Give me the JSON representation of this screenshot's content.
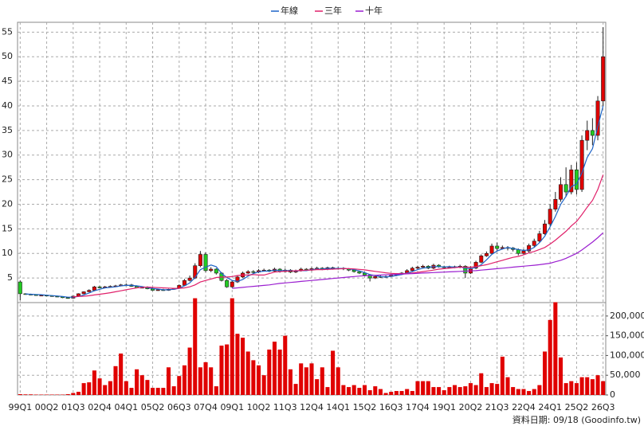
{
  "chart_data": {
    "type": "candlestick",
    "categories": [
      "99Q1",
      null,
      null,
      null,
      null,
      "00Q2",
      null,
      null,
      null,
      null,
      "01Q3",
      null,
      null,
      null,
      null,
      "02Q4",
      null,
      null,
      null,
      null,
      "04Q1",
      null,
      null,
      null,
      null,
      "05Q2",
      null,
      null,
      null,
      null,
      "06Q3",
      null,
      null,
      null,
      null,
      "07Q4",
      null,
      null,
      null,
      null,
      "09Q1",
      null,
      null,
      null,
      null,
      "10Q2",
      null,
      null,
      null,
      null,
      "11Q3",
      null,
      null,
      null,
      null,
      "12Q4",
      null,
      null,
      null,
      null,
      "14Q1",
      null,
      null,
      null,
      null,
      "15Q2",
      null,
      null,
      null,
      null,
      "16Q3",
      null,
      null,
      null,
      null,
      "17Q4",
      null,
      null,
      null,
      null,
      "19Q1",
      null,
      null,
      null,
      null,
      "20Q2",
      null,
      null,
      null,
      null,
      "21Q3",
      null,
      null,
      null,
      null,
      "22Q4",
      null,
      null,
      null,
      null,
      "24Q1",
      null,
      null,
      null,
      null,
      "25Q2",
      null,
      null,
      null,
      null,
      "26Q3"
    ],
    "open": [
      4.2,
      1.8,
      1.7,
      1.6,
      1.5,
      1.5,
      1.4,
      1.3,
      1.2,
      1.0,
      0.9,
      1.3,
      1.8,
      2.2,
      2.5,
      3.2,
      3.0,
      3.2,
      3.3,
      3.4,
      3.6,
      3.6,
      3.3,
      3.0,
      3.1,
      2.8,
      2.5,
      2.6,
      2.5,
      2.7,
      2.9,
      3.5,
      4.5,
      5.0,
      7.5,
      9.8,
      6.5,
      6.8,
      6.0,
      4.5,
      3.2,
      4.2,
      5.2,
      6.0,
      6.3,
      6.2,
      6.5,
      6.6,
      6.4,
      6.8,
      6.3,
      6.6,
      6.2,
      6.5,
      6.8,
      6.6,
      6.9,
      7.0,
      6.8,
      7.1,
      6.9,
      7.0,
      6.9,
      6.6,
      6.3,
      6.0,
      5.6,
      5.0,
      5.3,
      5.2,
      5.3,
      5.6,
      5.8,
      6.0,
      6.5,
      7.0,
      7.2,
      7.4,
      7.0,
      7.6,
      7.3,
      7.1,
      7.3,
      7.2,
      7.4,
      6.0,
      7.0,
      8.2,
      9.5,
      10.0,
      11.5,
      11.0,
      11.2,
      11.1,
      10.8,
      10.0,
      10.5,
      11.6,
      12.5,
      14.0,
      16.0,
      19.0,
      21.0,
      24.0,
      22.5,
      27.0,
      23.0,
      33.0,
      35.0,
      34.0,
      41.0
    ],
    "high": [
      4.5,
      1.9,
      1.8,
      1.7,
      1.6,
      1.6,
      1.5,
      1.4,
      1.3,
      1.1,
      1.4,
      1.9,
      2.3,
      2.7,
      3.4,
      3.4,
      3.4,
      3.5,
      3.6,
      3.8,
      3.9,
      3.8,
      3.5,
      3.3,
      3.3,
      3.0,
      2.8,
      2.8,
      2.8,
      3.0,
      3.7,
      4.8,
      5.5,
      8.0,
      10.5,
      10.2,
      7.2,
      7.0,
      6.2,
      4.8,
      4.5,
      5.5,
      6.3,
      6.6,
      6.6,
      6.8,
      6.9,
      6.8,
      7.1,
      7.0,
      6.9,
      6.8,
      6.7,
      7.1,
      7.0,
      7.2,
      7.3,
      7.2,
      7.3,
      7.3,
      7.2,
      7.2,
      7.0,
      6.8,
      6.5,
      6.2,
      5.8,
      5.6,
      5.5,
      5.5,
      5.8,
      6.0,
      6.2,
      6.8,
      7.3,
      7.5,
      7.7,
      7.6,
      7.9,
      7.8,
      7.5,
      7.5,
      7.5,
      7.7,
      7.6,
      7.4,
      8.5,
      9.8,
      10.4,
      12.0,
      12.2,
      11.6,
      11.5,
      11.3,
      11.0,
      10.9,
      12.0,
      13.0,
      14.6,
      16.8,
      20.0,
      22.5,
      25.5,
      27.5,
      28.0,
      28.5,
      34.0,
      37.0,
      37.5,
      42.0,
      56.0
    ],
    "low": [
      0.5,
      1.6,
      1.5,
      1.4,
      1.4,
      1.3,
      1.2,
      1.1,
      0.9,
      0.8,
      0.8,
      1.2,
      1.7,
      2.1,
      2.4,
      2.9,
      2.9,
      3.1,
      3.2,
      3.3,
      3.4,
      3.2,
      2.9,
      2.9,
      2.7,
      2.4,
      2.4,
      2.4,
      2.4,
      2.6,
      2.8,
      3.4,
      4.3,
      4.8,
      7.2,
      6.2,
      6.2,
      5.7,
      4.3,
      3.0,
      3.0,
      4.0,
      5.0,
      5.8,
      6.0,
      6.0,
      6.3,
      6.2,
      6.2,
      6.1,
      6.2,
      6.0,
      6.0,
      6.3,
      6.4,
      6.4,
      6.7,
      6.6,
      6.6,
      6.7,
      6.7,
      6.6,
      6.4,
      6.1,
      5.8,
      5.4,
      4.3,
      4.8,
      5.0,
      5.0,
      5.2,
      5.4,
      5.6,
      5.8,
      6.3,
      6.8,
      7.0,
      6.8,
      6.8,
      7.1,
      6.9,
      7.0,
      7.0,
      7.0,
      5.0,
      5.8,
      6.8,
      8.0,
      9.3,
      9.8,
      10.5,
      10.8,
      10.6,
      10.4,
      9.6,
      9.8,
      10.2,
      11.2,
      12.2,
      13.8,
      15.5,
      18.5,
      20.5,
      21.5,
      22.0,
      22.0,
      22.5,
      31.0,
      32.0,
      33.0,
      40.0
    ],
    "close": [
      1.8,
      1.7,
      1.6,
      1.5,
      1.5,
      1.4,
      1.3,
      1.2,
      1.0,
      0.9,
      1.3,
      1.8,
      2.2,
      2.5,
      3.2,
      3.0,
      3.2,
      3.3,
      3.4,
      3.6,
      3.6,
      3.3,
      3.0,
      3.1,
      2.8,
      2.5,
      2.6,
      2.5,
      2.7,
      2.9,
      3.5,
      4.5,
      5.0,
      7.5,
      9.8,
      6.5,
      6.8,
      6.0,
      4.5,
      3.2,
      4.2,
      5.2,
      6.0,
      6.3,
      6.2,
      6.5,
      6.6,
      6.4,
      6.8,
      6.3,
      6.6,
      6.2,
      6.5,
      6.8,
      6.6,
      6.9,
      7.0,
      6.8,
      7.1,
      6.9,
      7.0,
      6.9,
      6.6,
      6.3,
      6.0,
      5.6,
      5.0,
      5.3,
      5.2,
      5.3,
      5.6,
      5.8,
      6.0,
      6.5,
      7.0,
      7.2,
      7.4,
      7.0,
      7.6,
      7.3,
      7.1,
      7.3,
      7.2,
      7.4,
      6.0,
      7.0,
      8.2,
      9.5,
      10.0,
      11.5,
      11.0,
      11.2,
      11.1,
      10.8,
      10.0,
      10.5,
      11.6,
      12.5,
      14.0,
      16.0,
      19.0,
      21.0,
      24.0,
      22.5,
      27.0,
      23.0,
      33.0,
      35.0,
      34.0,
      41.0,
      50.0
    ],
    "volume": {
      "axis": "y2",
      "color": "#e00000",
      "values": [
        2000,
        1500,
        1500,
        1000,
        1000,
        1000,
        1000,
        1000,
        1000,
        2000,
        5000,
        8000,
        30000,
        32000,
        62000,
        42000,
        25000,
        35000,
        73000,
        105000,
        35000,
        18000,
        65000,
        50000,
        38000,
        18000,
        18000,
        18000,
        70000,
        22000,
        48000,
        75000,
        120000,
        245000,
        70000,
        83000,
        70000,
        22000,
        125000,
        128000,
        245000,
        155000,
        145000,
        110000,
        88000,
        75000,
        50000,
        115000,
        135000,
        115000,
        150000,
        65000,
        28000,
        80000,
        70000,
        80000,
        40000,
        70000,
        20000,
        112000,
        70000,
        25000,
        20000,
        25000,
        18000,
        25000,
        12000,
        22000,
        15000,
        5000,
        8000,
        10000,
        10000,
        15000,
        10000,
        35000,
        35000,
        35000,
        20000,
        20000,
        12000,
        20000,
        25000,
        20000,
        22000,
        30000,
        25000,
        55000,
        20000,
        30000,
        28000,
        97000,
        45000,
        20000,
        15000,
        15000,
        10000,
        15000,
        25000,
        110000,
        190000,
        235000,
        95000,
        30000,
        35000,
        30000,
        45000,
        45000,
        40000,
        50000,
        35000
      ]
    },
    "series": [
      {
        "name": "年線",
        "color": "#1e64c8",
        "values": [
          null,
          1.75,
          1.7,
          1.65,
          1.6,
          1.5,
          1.43,
          1.35,
          1.23,
          1.1,
          1.1,
          1.25,
          1.55,
          1.95,
          2.4,
          2.7,
          3.0,
          3.1,
          3.2,
          3.4,
          3.5,
          3.5,
          3.4,
          3.25,
          3.05,
          2.85,
          2.75,
          2.6,
          2.6,
          2.7,
          2.9,
          3.4,
          4.0,
          5.1,
          6.7,
          7.2,
          7.65,
          7.3,
          5.95,
          5.1,
          4.5,
          4.3,
          4.7,
          5.4,
          5.9,
          6.25,
          6.4,
          6.4,
          6.6,
          6.5,
          6.5,
          6.5,
          6.4,
          6.5,
          6.5,
          6.7,
          6.8,
          6.8,
          6.95,
          6.95,
          6.95,
          6.95,
          6.85,
          6.7,
          6.45,
          6.1,
          5.7,
          5.5,
          5.3,
          5.2,
          5.35,
          5.5,
          5.7,
          6.0,
          6.3,
          6.7,
          7.0,
          7.15,
          7.3,
          7.3,
          7.25,
          7.3,
          7.2,
          7.25,
          7.0,
          6.9,
          7.15,
          7.7,
          8.7,
          9.8,
          10.5,
          10.9,
          11.2,
          11.0,
          10.8,
          10.6,
          10.7,
          11.2,
          12.2,
          13.5,
          15.4,
          17.5,
          20.0,
          21.6,
          23.6,
          24.1,
          26.4,
          29.5,
          31.3,
          35.8,
          40.0
        ]
      },
      {
        "name": "三年",
        "color": "#e0206a",
        "values": [
          null,
          null,
          null,
          null,
          null,
          null,
          null,
          null,
          null,
          null,
          1.2,
          1.25,
          1.3,
          1.4,
          1.55,
          1.7,
          1.85,
          2.0,
          2.2,
          2.4,
          2.6,
          2.8,
          3.0,
          3.1,
          3.15,
          3.1,
          3.05,
          3.0,
          2.95,
          2.9,
          2.9,
          3.0,
          3.2,
          3.6,
          4.2,
          4.5,
          4.8,
          5.1,
          5.2,
          5.2,
          5.3,
          5.5,
          5.6,
          5.6,
          5.7,
          5.6,
          5.6,
          5.9,
          6.2,
          6.3,
          6.4,
          6.4,
          6.5,
          6.5,
          6.6,
          6.6,
          6.7,
          6.7,
          6.75,
          6.8,
          6.85,
          6.9,
          6.9,
          6.85,
          6.75,
          6.65,
          6.5,
          6.35,
          6.2,
          6.05,
          5.95,
          5.9,
          5.9,
          5.9,
          6.0,
          6.15,
          6.3,
          6.45,
          6.6,
          6.8,
          6.9,
          7.0,
          7.1,
          7.2,
          7.2,
          7.2,
          7.3,
          7.5,
          7.7,
          8.0,
          8.3,
          8.6,
          8.9,
          9.2,
          9.4,
          9.7,
          10.1,
          10.4,
          10.8,
          11.2,
          11.9,
          12.7,
          13.6,
          14.5,
          15.6,
          16.5,
          17.9,
          19.4,
          20.8,
          23.0,
          26.0
        ]
      },
      {
        "name": "十年",
        "color": "#9b1fd0",
        "values": [
          null,
          null,
          null,
          null,
          null,
          null,
          null,
          null,
          null,
          null,
          null,
          null,
          null,
          null,
          null,
          null,
          null,
          null,
          null,
          null,
          null,
          null,
          null,
          null,
          null,
          null,
          null,
          null,
          null,
          null,
          null,
          null,
          null,
          null,
          null,
          null,
          null,
          null,
          null,
          null,
          2.9,
          3.0,
          3.1,
          3.2,
          3.3,
          3.4,
          3.5,
          3.6,
          3.75,
          3.9,
          4.0,
          4.1,
          4.2,
          4.3,
          4.4,
          4.5,
          4.6,
          4.7,
          4.8,
          4.9,
          5.0,
          5.1,
          5.2,
          5.3,
          5.4,
          5.45,
          5.5,
          5.55,
          5.6,
          5.65,
          5.7,
          5.75,
          5.8,
          5.85,
          5.9,
          5.95,
          6.0,
          6.05,
          6.1,
          6.15,
          6.2,
          6.25,
          6.3,
          6.35,
          6.4,
          6.45,
          6.5,
          6.6,
          6.7,
          6.8,
          6.9,
          7.0,
          7.1,
          7.2,
          7.3,
          7.4,
          7.5,
          7.6,
          7.7,
          7.85,
          8.0,
          8.3,
          8.6,
          9.0,
          9.5,
          10.0,
          10.7,
          11.5,
          12.3,
          13.2,
          14.2
        ]
      }
    ],
    "up_color": "#e00000",
    "down_color": "#22cc22",
    "ylim": [
      0,
      57
    ],
    "yticks": [
      5,
      10,
      15,
      20,
      25,
      30,
      35,
      40,
      45,
      50,
      55
    ],
    "y2lim": [
      0,
      234000
    ],
    "y2ticks": [
      0,
      {
        "value": 50000,
        "label": "50,000"
      },
      {
        "value": 100000,
        "label": "100,000"
      },
      {
        "value": 150000,
        "label": "150,000"
      },
      {
        "value": 200000,
        "label": "200,000"
      }
    ],
    "grid": true,
    "legend": "top",
    "source": "資料日期: 09/18  (Goodinfo.tw)"
  }
}
